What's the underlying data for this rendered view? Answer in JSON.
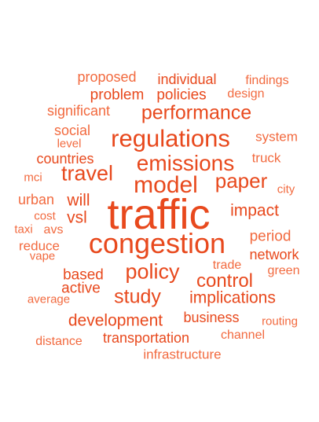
{
  "colors": {
    "dark": "#e8491d",
    "light": "#f26a3f",
    "background": "#ffffff"
  },
  "words": [
    {
      "text": "traffic",
      "tone": "dark"
    },
    {
      "text": "congestion",
      "tone": "dark"
    },
    {
      "text": "regulations",
      "tone": "dark"
    },
    {
      "text": "emissions",
      "tone": "dark"
    },
    {
      "text": "model",
      "tone": "dark"
    },
    {
      "text": "travel",
      "tone": "dark"
    },
    {
      "text": "performance",
      "tone": "dark"
    },
    {
      "text": "policy",
      "tone": "dark"
    },
    {
      "text": "study",
      "tone": "dark"
    },
    {
      "text": "control",
      "tone": "dark"
    },
    {
      "text": "paper",
      "tone": "dark"
    },
    {
      "text": "impact",
      "tone": "dark"
    },
    {
      "text": "implications",
      "tone": "dark"
    },
    {
      "text": "development",
      "tone": "dark"
    },
    {
      "text": "policies",
      "tone": "dark"
    },
    {
      "text": "problem",
      "tone": "dark"
    },
    {
      "text": "individual",
      "tone": "dark"
    },
    {
      "text": "proposed",
      "tone": "light"
    },
    {
      "text": "findings",
      "tone": "light"
    },
    {
      "text": "design",
      "tone": "light"
    },
    {
      "text": "significant",
      "tone": "light"
    },
    {
      "text": "system",
      "tone": "light"
    },
    {
      "text": "social",
      "tone": "light"
    },
    {
      "text": "level",
      "tone": "light"
    },
    {
      "text": "countries",
      "tone": "dark"
    },
    {
      "text": "truck",
      "tone": "light"
    },
    {
      "text": "mci",
      "tone": "light"
    },
    {
      "text": "city",
      "tone": "light"
    },
    {
      "text": "urban",
      "tone": "light"
    },
    {
      "text": "will",
      "tone": "dark"
    },
    {
      "text": "cost",
      "tone": "light"
    },
    {
      "text": "vsl",
      "tone": "dark"
    },
    {
      "text": "taxi",
      "tone": "light"
    },
    {
      "text": "avs",
      "tone": "light"
    },
    {
      "text": "period",
      "tone": "light"
    },
    {
      "text": "reduce",
      "tone": "light"
    },
    {
      "text": "vape",
      "tone": "light"
    },
    {
      "text": "network",
      "tone": "dark"
    },
    {
      "text": "trade",
      "tone": "light"
    },
    {
      "text": "green",
      "tone": "light"
    },
    {
      "text": "based",
      "tone": "dark"
    },
    {
      "text": "active",
      "tone": "dark"
    },
    {
      "text": "average",
      "tone": "light"
    },
    {
      "text": "business",
      "tone": "dark"
    },
    {
      "text": "routing",
      "tone": "light"
    },
    {
      "text": "distance",
      "tone": "light"
    },
    {
      "text": "transportation",
      "tone": "dark"
    },
    {
      "text": "channel",
      "tone": "light"
    },
    {
      "text": "infrastructure",
      "tone": "light"
    }
  ]
}
